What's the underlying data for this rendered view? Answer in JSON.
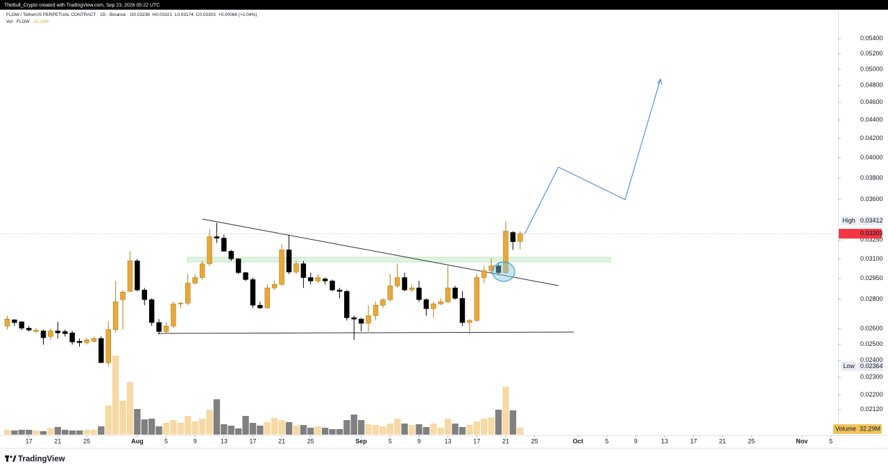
{
  "chart_data": {
    "type": "candlestick",
    "top_bar": "TheBull_Crypto created with TradingView.com, Sep 23, 2026 05:22 UTC",
    "title": "FLOW / TetherUS PERPETUAL CONTRACT · 1D · Binance",
    "ohlc_keys": [
      "O",
      "H",
      "L",
      "C"
    ],
    "change_label": "+0.00066 (+2.04%)",
    "volume_title": "Vol · FLOW",
    "volume_name": "Volume",
    "volume_label": "32.29M",
    "footer": "TradingView",
    "log_scale": true,
    "grid": false,
    "up_color": "#e8a93a",
    "down_color": "#000000",
    "volume_up_color": "#f6d9a3",
    "volume_down_color": "#808080",
    "last_price_color": "#f23645",
    "x": [
      "2026-07-14",
      "2026-07-15",
      "2026-07-16",
      "2026-07-17",
      "2026-07-18",
      "2026-07-19",
      "2026-07-20",
      "2026-07-21",
      "2026-07-22",
      "2026-07-23",
      "2026-07-24",
      "2026-07-25",
      "2026-07-26",
      "2026-07-27",
      "2026-07-28",
      "2026-07-29",
      "2026-07-30",
      "2026-07-31",
      "2026-08-01",
      "2026-08-02",
      "2026-08-03",
      "2026-08-04",
      "2026-08-05",
      "2026-08-06",
      "2026-08-07",
      "2026-08-08",
      "2026-08-09",
      "2026-08-10",
      "2026-08-11",
      "2026-08-12",
      "2026-08-13",
      "2026-08-14",
      "2026-08-15",
      "2026-08-16",
      "2026-08-17",
      "2026-08-18",
      "2026-08-19",
      "2026-08-20",
      "2026-08-21",
      "2026-08-22",
      "2026-08-23",
      "2026-08-24",
      "2026-08-25",
      "2026-08-26",
      "2026-08-27",
      "2026-08-28",
      "2026-08-29",
      "2026-08-30",
      "2026-08-31",
      "2026-09-01",
      "2026-09-02",
      "2026-09-03",
      "2026-09-04",
      "2026-09-05",
      "2026-09-06",
      "2026-09-07",
      "2026-09-08",
      "2026-09-09",
      "2026-09-10",
      "2026-09-11",
      "2026-09-12",
      "2026-09-13",
      "2026-09-14",
      "2026-09-15",
      "2026-09-16",
      "2026-09-17",
      "2026-09-18",
      "2026-09-19",
      "2026-09-20",
      "2026-09-21",
      "2026-09-22",
      "2026-09-23"
    ],
    "open": [
      0.02617,
      0.02658,
      0.02645,
      0.02603,
      0.02581,
      0.02585,
      0.02549,
      0.02585,
      0.02581,
      0.02572,
      0.02518,
      0.0251,
      0.02518,
      0.02536,
      0.02386,
      0.02594,
      0.02797,
      0.02856,
      0.03084,
      0.02866,
      0.02797,
      0.0264,
      0.02581,
      0.02617,
      0.02767,
      0.02772,
      0.02916,
      0.02957,
      0.03062,
      0.03278,
      0.03266,
      0.0316,
      0.031,
      0.02994,
      0.02942,
      0.02758,
      0.02739,
      0.02881,
      0.02906,
      0.03171,
      0.02999,
      0.03062,
      0.02957,
      0.02932,
      0.02947,
      0.02932,
      0.02866,
      0.02856,
      0.02672,
      0.02663,
      0.02635,
      0.02686,
      0.02758,
      0.02797,
      0.02896,
      0.02957,
      0.02866,
      0.02881,
      0.02797,
      0.02734,
      0.02767,
      0.02782,
      0.02881,
      0.02806,
      0.0264,
      0.02654,
      0.02957,
      0.03009,
      0.03046,
      0.02994,
      0.03313,
      0.03238
    ],
    "high": [
      0.02686,
      0.02663,
      0.02649,
      0.02617,
      0.02603,
      0.02594,
      0.02603,
      0.02645,
      0.02594,
      0.02585,
      0.02536,
      0.02541,
      0.02549,
      0.02549,
      0.02649,
      0.02932,
      0.02866,
      0.0316,
      0.031,
      0.02881,
      0.02806,
      0.02663,
      0.0264,
      0.02782,
      0.02782,
      0.02983,
      0.02983,
      0.03084,
      0.03342,
      0.03395,
      0.03295,
      0.03171,
      0.03105,
      0.02999,
      0.02957,
      0.02782,
      0.02906,
      0.02932,
      0.03216,
      0.03295,
      0.03084,
      0.03084,
      0.02994,
      0.02983,
      0.02957,
      0.02942,
      0.02881,
      0.02866,
      0.02686,
      0.02672,
      0.02758,
      0.02782,
      0.02806,
      0.02983,
      0.03062,
      0.02994,
      0.02906,
      0.02932,
      0.02806,
      0.02782,
      0.02806,
      0.03046,
      0.02896,
      0.02856,
      0.02663,
      0.02983,
      0.03046,
      0.03105,
      0.03062,
      0.03412,
      0.03324,
      0.03321
    ],
    "low": [
      0.02594,
      0.02617,
      0.0259,
      0.02581,
      0.02572,
      0.02497,
      0.02527,
      0.02536,
      0.02549,
      0.02497,
      0.02484,
      0.02497,
      0.0251,
      0.02386,
      0.02364,
      0.02572,
      0.02594,
      0.02851,
      0.02856,
      0.02758,
      0.02617,
      0.02563,
      0.02567,
      0.02603,
      0.02739,
      0.02758,
      0.02906,
      0.02942,
      0.03046,
      0.03227,
      0.0316,
      0.03084,
      0.02983,
      0.02932,
      0.02739,
      0.02734,
      0.02734,
      0.02866,
      0.02896,
      0.02983,
      0.02983,
      0.02881,
      0.02906,
      0.02916,
      0.02906,
      0.02856,
      0.02806,
      0.02654,
      0.02527,
      0.02581,
      0.02581,
      0.02654,
      0.02739,
      0.02782,
      0.02881,
      0.02856,
      0.02851,
      0.02782,
      0.02686,
      0.02672,
      0.02758,
      0.02772,
      0.02797,
      0.02617,
      0.02563,
      0.02645,
      0.02916,
      0.02994,
      0.02983,
      0.02983,
      0.03171,
      0.03174
    ],
    "close": [
      0.02663,
      0.0264,
      0.02603,
      0.0259,
      0.0259,
      0.02541,
      0.02585,
      0.02572,
      0.02567,
      0.02514,
      0.0251,
      0.02527,
      0.02536,
      0.02386,
      0.02594,
      0.02782,
      0.02851,
      0.03084,
      0.02866,
      0.02797,
      0.0264,
      0.02581,
      0.02617,
      0.02767,
      0.02772,
      0.02916,
      0.02957,
      0.03062,
      0.03278,
      0.03266,
      0.0316,
      0.031,
      0.02994,
      0.02942,
      0.02758,
      0.02739,
      0.02881,
      0.02906,
      0.03171,
      0.02999,
      0.03062,
      0.02957,
      0.02932,
      0.02957,
      0.02932,
      0.02866,
      0.02856,
      0.02672,
      0.02663,
      0.02635,
      0.02686,
      0.02758,
      0.02797,
      0.02896,
      0.02957,
      0.02866,
      0.02881,
      0.02797,
      0.02734,
      0.02767,
      0.02782,
      0.02881,
      0.02806,
      0.0264,
      0.02654,
      0.02957,
      0.03009,
      0.03046,
      0.02994,
      0.03324,
      0.03237,
      0.03303
    ],
    "volume": [
      22.6,
      19.4,
      22.6,
      22.6,
      19.4,
      16.1,
      29.1,
      35.5,
      22.6,
      19.4,
      19.4,
      22.6,
      22.6,
      38.7,
      135.6,
      368.1,
      158.2,
      245.4,
      119.5,
      71.0,
      74.3,
      38.7,
      54.9,
      67.8,
      54.9,
      87.2,
      61.4,
      74.3,
      116.2,
      164.7,
      48.4,
      42.0,
      29.1,
      87.2,
      54.9,
      42.0,
      58.1,
      77.5,
      67.8,
      58.1,
      42.0,
      45.2,
      32.3,
      38.7,
      32.3,
      25.8,
      25.8,
      67.8,
      93.6,
      67.8,
      48.4,
      45.2,
      38.7,
      51.7,
      74.3,
      51.7,
      45.2,
      48.4,
      35.5,
      51.7,
      32.3,
      74.3,
      51.7,
      35.5,
      45.2,
      61.4,
      74.3,
      80.7,
      116.2,
      222.8,
      113.0,
      32.29
    ],
    "volume_lim": [
      0,
      1979
    ],
    "xlim": [
      "2026-07-13",
      "2026-11-06"
    ],
    "xticks": [
      {
        "value": "2026-07-17",
        "label": "17"
      },
      {
        "value": "2026-07-21",
        "label": "21"
      },
      {
        "value": "2026-07-25",
        "label": "25"
      },
      {
        "value": "2026-08-01",
        "label": "Aug"
      },
      {
        "value": "2026-08-05",
        "label": "5"
      },
      {
        "value": "2026-08-09",
        "label": "9"
      },
      {
        "value": "2026-08-13",
        "label": "13"
      },
      {
        "value": "2026-08-17",
        "label": "17"
      },
      {
        "value": "2026-08-21",
        "label": "21"
      },
      {
        "value": "2026-08-25",
        "label": "25"
      },
      {
        "value": "2026-09-01",
        "label": "Sep"
      },
      {
        "value": "2026-09-05",
        "label": "5"
      },
      {
        "value": "2026-09-09",
        "label": "9"
      },
      {
        "value": "2026-09-13",
        "label": "13"
      },
      {
        "value": "2026-09-17",
        "label": "17"
      },
      {
        "value": "2026-09-21",
        "label": "21"
      },
      {
        "value": "2026-09-25",
        "label": "25"
      },
      {
        "value": "2026-10-01",
        "label": "Oct"
      },
      {
        "value": "2026-10-05",
        "label": "5"
      },
      {
        "value": "2026-10-09",
        "label": "9"
      },
      {
        "value": "2026-10-13",
        "label": "13"
      },
      {
        "value": "2026-10-17",
        "label": "17"
      },
      {
        "value": "2026-10-21",
        "label": "21"
      },
      {
        "value": "2026-10-25",
        "label": "25"
      },
      {
        "value": "2026-11-01",
        "label": "Nov"
      },
      {
        "value": "2026-11-05",
        "label": "5"
      }
    ],
    "ylim": [
      0.0199,
      0.0581
    ],
    "yticks": [
      {
        "value": 0.054,
        "label": "0.05400"
      },
      {
        "value": 0.052,
        "label": "0.05200"
      },
      {
        "value": 0.05,
        "label": "0.05000"
      },
      {
        "value": 0.048,
        "label": "0.04800"
      },
      {
        "value": 0.046,
        "label": "0.04600"
      },
      {
        "value": 0.044,
        "label": "0.04400"
      },
      {
        "value": 0.042,
        "label": "0.04200"
      },
      {
        "value": 0.04,
        "label": "0.04000"
      },
      {
        "value": 0.038,
        "label": "0.03800"
      },
      {
        "value": 0.036,
        "label": "0.03600"
      },
      {
        "value": 0.0325,
        "label": "0.03250"
      },
      {
        "value": 0.031,
        "label": "0.03100"
      },
      {
        "value": 0.0295,
        "label": "0.02950"
      },
      {
        "value": 0.028,
        "label": "0.02800"
      },
      {
        "value": 0.026,
        "label": "0.02600"
      },
      {
        "value": 0.025,
        "label": "0.02500"
      },
      {
        "value": 0.024,
        "label": "0.02400"
      },
      {
        "value": 0.023,
        "label": "0.02300"
      },
      {
        "value": 0.022,
        "label": "0.02200"
      },
      {
        "value": 0.0212,
        "label": "0.02120"
      }
    ],
    "markers": [
      {
        "name": "High",
        "value": 0.03412
      },
      {
        "name": "Low",
        "value": 0.02364
      }
    ]
  }
}
